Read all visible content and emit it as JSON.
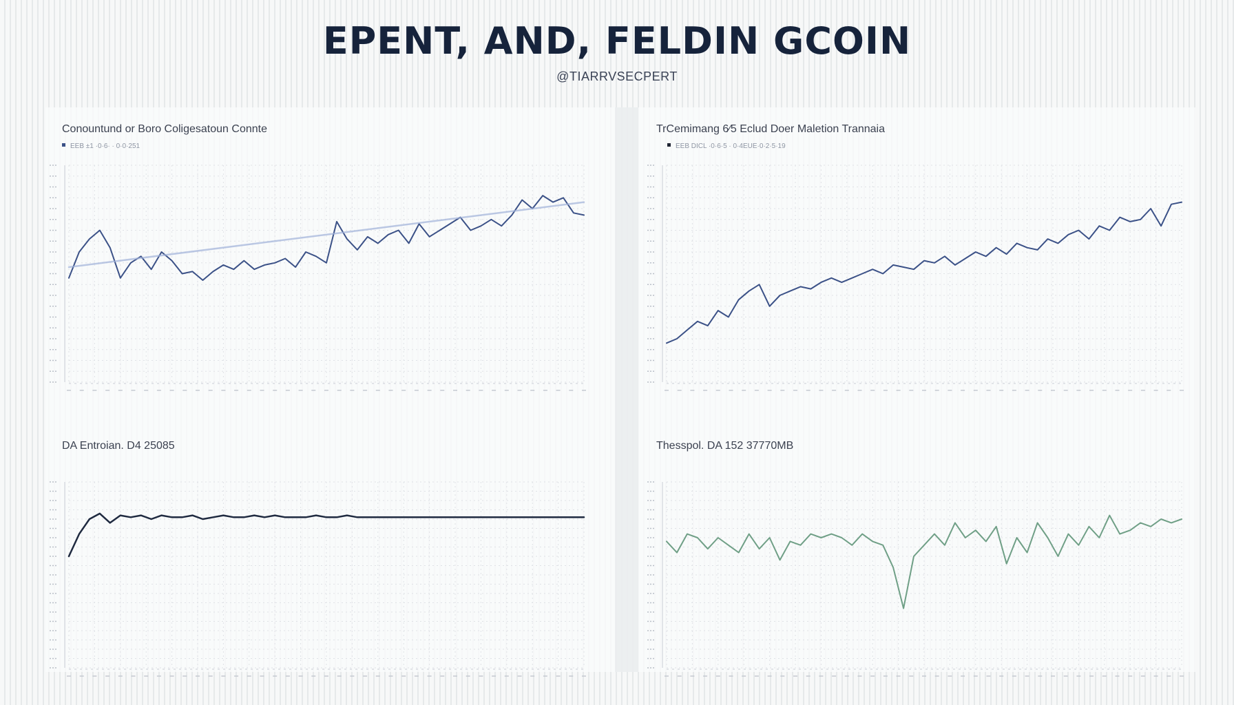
{
  "page": {
    "title": "EPENT, AND, FELDIN GCOIN",
    "subtitle": "@TIARRVSECPERT"
  },
  "colors": {
    "navy": "#3b5187",
    "trend": "#9fb0d8",
    "dark": "#1f2a40",
    "green": "#6f9f86",
    "axis": "#c9ced6",
    "grid": "#dfe2e6"
  },
  "chart_data": [
    {
      "type": "line",
      "title": "Conountund or Boro Coligesatoun Connte",
      "legend": "EEB ±1 ·0·6· · 0·0·251",
      "legend_position": "top-left",
      "grid": true,
      "ylim": [
        0,
        100
      ],
      "x": [
        0,
        2,
        4,
        6,
        8,
        10,
        12,
        14,
        16,
        18,
        20,
        22,
        24,
        26,
        28,
        30,
        32,
        34,
        36,
        38,
        40,
        42,
        44,
        46,
        48,
        50,
        52,
        54,
        56,
        58,
        60,
        62,
        64,
        66,
        68,
        70,
        72,
        74,
        76,
        78,
        80,
        82,
        84,
        86,
        88,
        90,
        92,
        94,
        96,
        98,
        100
      ],
      "series": [
        {
          "values": [
            48,
            60,
            66,
            70,
            62,
            48,
            55,
            58,
            52,
            60,
            56,
            50,
            51,
            47,
            51,
            54,
            52,
            56,
            52,
            54,
            55,
            57,
            53,
            60,
            58,
            55,
            74,
            66,
            61,
            67,
            64,
            68,
            70,
            64,
            73,
            67,
            70,
            73,
            76,
            70,
            72,
            75,
            72,
            77,
            84,
            80,
            86,
            83,
            85,
            78,
            77
          ]
        },
        {
          "values": [
            53,
            null,
            null,
            null,
            null,
            null,
            null,
            null,
            null,
            null,
            null,
            null,
            null,
            null,
            null,
            null,
            null,
            null,
            null,
            null,
            null,
            null,
            null,
            null,
            null,
            null,
            null,
            null,
            null,
            null,
            null,
            null,
            null,
            null,
            null,
            null,
            null,
            null,
            null,
            null,
            null,
            null,
            null,
            null,
            null,
            null,
            null,
            null,
            null,
            null,
            83
          ]
        }
      ]
    },
    {
      "type": "line",
      "title": "TrCemimang 6⁄5 Eclud Doer Maletion Trannaia",
      "legend": "EEB DICL ·0·6·5 · 0·4EUE·0·2·5·19",
      "legend_position": "top-left",
      "grid": true,
      "ylim": [
        0,
        100
      ],
      "x": [
        0,
        2,
        4,
        6,
        8,
        10,
        12,
        14,
        16,
        18,
        20,
        22,
        24,
        26,
        28,
        30,
        32,
        34,
        36,
        38,
        40,
        42,
        44,
        46,
        48,
        50,
        52,
        54,
        56,
        58,
        60,
        62,
        64,
        66,
        68,
        70,
        72,
        74,
        76,
        78,
        80,
        82,
        84,
        86,
        88,
        90,
        92,
        94,
        96,
        98,
        100
      ],
      "series": [
        {
          "values": [
            18,
            20,
            24,
            28,
            26,
            33,
            30,
            38,
            42,
            45,
            35,
            40,
            42,
            44,
            43,
            46,
            48,
            46,
            48,
            50,
            52,
            50,
            54,
            53,
            52,
            56,
            55,
            58,
            54,
            57,
            60,
            58,
            62,
            59,
            64,
            62,
            61,
            66,
            64,
            68,
            70,
            66,
            72,
            70,
            76,
            74,
            75,
            80,
            72,
            82,
            83
          ]
        },
        {
          "values": [
            null,
            null,
            null,
            null,
            null,
            null,
            null,
            null,
            null,
            null,
            null,
            null,
            null,
            null,
            null,
            null,
            null,
            null,
            null,
            null,
            null,
            null,
            null,
            null,
            null,
            null,
            null,
            null,
            null,
            null,
            null,
            null,
            null,
            null,
            null,
            null,
            null,
            null,
            null,
            null,
            null,
            null,
            null,
            null,
            null,
            null,
            null,
            null,
            null,
            null,
            null
          ]
        }
      ]
    },
    {
      "type": "line",
      "title": "DA Entroian.  D4  25085",
      "legend": "",
      "grid": true,
      "ylim": [
        0,
        100
      ],
      "x": [
        0,
        2,
        4,
        6,
        8,
        10,
        12,
        14,
        16,
        18,
        20,
        22,
        24,
        26,
        28,
        30,
        32,
        34,
        36,
        38,
        40,
        42,
        44,
        46,
        48,
        50,
        52,
        54,
        56,
        58,
        60,
        62,
        64,
        66,
        68,
        70,
        72,
        74,
        76,
        78,
        80,
        82,
        84,
        86,
        88,
        90,
        92,
        94,
        96,
        98,
        100
      ],
      "series": [
        {
          "values": [
            60,
            72,
            80,
            83,
            78,
            82,
            81,
            82,
            80,
            82,
            81,
            81,
            82,
            80,
            81,
            82,
            81,
            81,
            82,
            81,
            82,
            81,
            81,
            81,
            82,
            81,
            81,
            82,
            81,
            81,
            81,
            81,
            81,
            81,
            81,
            81,
            81,
            81,
            81,
            81,
            81,
            81,
            81,
            81,
            81,
            81,
            81,
            81,
            81,
            81,
            81
          ]
        }
      ]
    },
    {
      "type": "line",
      "title": "Thesspol.  DA  152  37770MB",
      "legend": "",
      "grid": true,
      "ylim": [
        0,
        100
      ],
      "x": [
        0,
        2,
        4,
        6,
        8,
        10,
        12,
        14,
        16,
        18,
        20,
        22,
        24,
        26,
        28,
        30,
        32,
        34,
        36,
        38,
        40,
        42,
        44,
        46,
        48,
        50,
        52,
        54,
        56,
        58,
        60,
        62,
        64,
        66,
        68,
        70,
        72,
        74,
        76,
        78,
        80,
        82,
        84,
        86,
        88,
        90,
        92,
        94,
        96,
        98,
        100
      ],
      "series": [
        {
          "values": [
            68,
            62,
            72,
            70,
            64,
            70,
            66,
            62,
            72,
            64,
            70,
            58,
            68,
            66,
            72,
            70,
            72,
            70,
            66,
            72,
            68,
            66,
            54,
            32,
            60,
            66,
            72,
            66,
            78,
            70,
            74,
            68,
            76,
            56,
            70,
            62,
            78,
            70,
            60,
            72,
            66,
            76,
            70,
            82,
            72,
            74,
            78,
            76,
            80,
            78,
            80
          ]
        }
      ]
    }
  ]
}
